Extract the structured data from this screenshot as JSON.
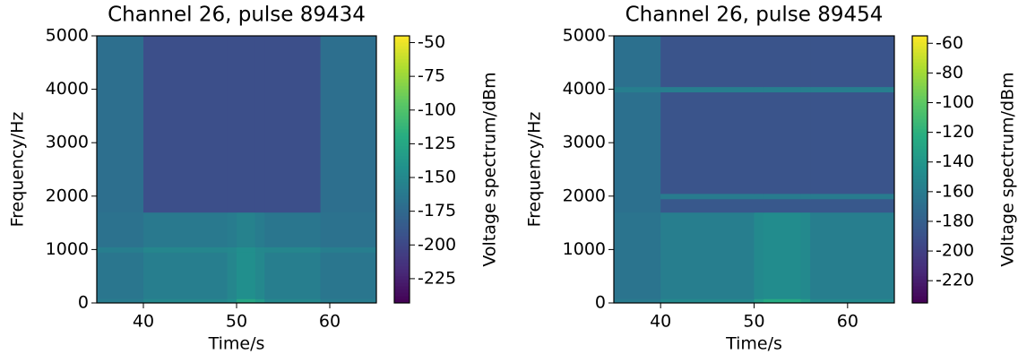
{
  "chart_data": [
    {
      "type": "heatmap",
      "title": "Channel 26, pulse 89434",
      "xlabel": "Time/s",
      "ylabel": "Frequency/Hz",
      "colorbar_label": "Voltage spectrum/dBm",
      "colormap": "viridis",
      "x": [
        35,
        40,
        49,
        50,
        52,
        53,
        59,
        65
      ],
      "y": [
        0,
        80,
        950,
        1050,
        1700,
        5000
      ],
      "values": [
        [
          -160,
          -150,
          -145,
          -125,
          -135,
          -150,
          -160
        ],
        [
          -165,
          -158,
          -152,
          -145,
          -150,
          -158,
          -165
        ],
        [
          -158,
          -152,
          -150,
          -145,
          -150,
          -152,
          -158
        ],
        [
          -168,
          -162,
          -160,
          -155,
          -160,
          -165,
          -168
        ],
        [
          -170,
          -195,
          -195,
          -195,
          -195,
          -195,
          -170
        ]
      ],
      "xlim": [
        35,
        65
      ],
      "ylim": [
        0,
        5000
      ],
      "xticks": [
        40,
        50,
        60
      ],
      "yticks": [
        0,
        1000,
        2000,
        3000,
        4000,
        5000
      ],
      "zlim": [
        -243,
        -45
      ],
      "zticks": [
        -50,
        -75,
        -100,
        -125,
        -150,
        -175,
        -200,
        -225
      ]
    },
    {
      "type": "heatmap",
      "title": "Channel 26, pulse 89454",
      "xlabel": "Time/s",
      "ylabel": "Frequency/Hz",
      "colorbar_label": "Voltage spectrum/dBm",
      "colormap": "viridis",
      "x": [
        35,
        40,
        50,
        51,
        55,
        56,
        65
      ],
      "y": [
        0,
        80,
        1700,
        1950,
        2050,
        3950,
        4050,
        5000
      ],
      "values": [
        [
          -160,
          -150,
          -135,
          -125,
          -135,
          -150
        ],
        [
          -165,
          -158,
          -150,
          -148,
          -150,
          -158
        ],
        [
          -168,
          -185,
          -185,
          -185,
          -185,
          -185
        ],
        [
          -168,
          -160,
          -160,
          -160,
          -160,
          -160
        ],
        [
          -168,
          -188,
          -188,
          -188,
          -188,
          -188
        ],
        [
          -158,
          -158,
          -158,
          -158,
          -158,
          -158
        ],
        [
          -168,
          -188,
          -188,
          -188,
          -188,
          -188
        ]
      ],
      "xlim": [
        35,
        65
      ],
      "ylim": [
        0,
        5000
      ],
      "xticks": [
        40,
        50,
        60
      ],
      "yticks": [
        0,
        1000,
        2000,
        3000,
        4000,
        5000
      ],
      "zlim": [
        -235,
        -55
      ],
      "zticks": [
        -60,
        -80,
        -100,
        -120,
        -140,
        -160,
        -180,
        -200,
        -220
      ]
    }
  ]
}
